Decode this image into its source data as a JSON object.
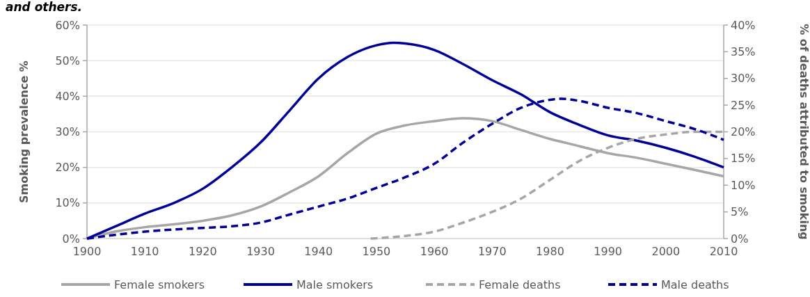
{
  "chart_data": {
    "type": "line",
    "title": "and others.",
    "ylabel": "Smoking prevalence %",
    "y2label": "% of deaths attributed to smoking",
    "xlim": [
      1900,
      2010
    ],
    "xticks": [
      1900,
      1910,
      1920,
      1930,
      1940,
      1950,
      1960,
      1970,
      1980,
      1990,
      2000,
      2010
    ],
    "ylim": [
      0,
      60
    ],
    "yticks": [
      {
        "value": 0,
        "label": "0%"
      },
      {
        "value": 10,
        "label": "10%"
      },
      {
        "value": 20,
        "label": "20%"
      },
      {
        "value": 30,
        "label": "30%"
      },
      {
        "value": 40,
        "label": "40%"
      },
      {
        "value": 50,
        "label": "50%"
      },
      {
        "value": 60,
        "label": "60%"
      }
    ],
    "y2lim": [
      0,
      40
    ],
    "y2ticks": [
      {
        "value": 0,
        "label": "0%"
      },
      {
        "value": 5,
        "label": "5%"
      },
      {
        "value": 10,
        "label": "10%"
      },
      {
        "value": 15,
        "label": "15%"
      },
      {
        "value": 20,
        "label": "20%"
      },
      {
        "value": 25,
        "label": "25%"
      },
      {
        "value": 30,
        "label": "30%"
      },
      {
        "value": 35,
        "label": "35%"
      },
      {
        "value": 40,
        "label": "40%"
      }
    ],
    "grid": "y",
    "legend": "bottom",
    "series": [
      {
        "name": "Female smokers",
        "color": "#a6a6a6",
        "line_style": "solid",
        "x": [
          1900,
          1905,
          1910,
          1915,
          1920,
          1925,
          1930,
          1935,
          1940,
          1945,
          1950,
          1955,
          1960,
          1965,
          1970,
          1975,
          1980,
          1985,
          1990,
          1995,
          2000,
          2005,
          2010
        ],
        "values": [
          0,
          2,
          3.2,
          4,
          5,
          6.5,
          9,
          13,
          17.5,
          24,
          29.5,
          31.8,
          33,
          33.8,
          33,
          30.5,
          28,
          26,
          24,
          22.7,
          21,
          19.3,
          17.5
        ]
      },
      {
        "name": "Male smokers",
        "color": "#000099",
        "line_style": "solid",
        "x": [
          1900,
          1905,
          1910,
          1915,
          1920,
          1925,
          1930,
          1935,
          1940,
          1945,
          1950,
          1953,
          1955,
          1960,
          1965,
          1970,
          1975,
          1980,
          1985,
          1990,
          1995,
          2000,
          2005,
          2010
        ],
        "values": [
          0,
          3.5,
          7,
          10,
          14,
          20,
          27,
          36,
          45,
          51,
          54.3,
          55,
          54.8,
          53,
          49,
          44.5,
          40.5,
          35.5,
          32,
          29,
          27.5,
          25.5,
          23,
          20
        ]
      },
      {
        "name": "Female deaths",
        "color": "#a6a6a6",
        "line_style": "dashed",
        "axis": "y2",
        "x": [
          1949,
          1955,
          1960,
          1965,
          1970,
          1975,
          1980,
          1985,
          1990,
          1995,
          2000,
          2005,
          2010
        ],
        "values": [
          0,
          0.5,
          1.3,
          3,
          5,
          7.5,
          11,
          14.5,
          17,
          18.7,
          19.5,
          20,
          20
        ]
      },
      {
        "name": "Male deaths",
        "color": "#000099",
        "line_style": "dashed",
        "axis": "y2",
        "x": [
          1900,
          1910,
          1920,
          1925,
          1930,
          1935,
          1940,
          1945,
          1950,
          1955,
          1960,
          1965,
          1970,
          1975,
          1980,
          1982,
          1985,
          1990,
          1995,
          2000,
          2005,
          2010
        ],
        "values": [
          0,
          1.3,
          2,
          2.3,
          3,
          4.5,
          6,
          7.5,
          9.5,
          11.5,
          14,
          18,
          21.5,
          24.5,
          26,
          26.2,
          25.8,
          24.5,
          23.5,
          22,
          20.5,
          18.5
        ]
      }
    ]
  }
}
